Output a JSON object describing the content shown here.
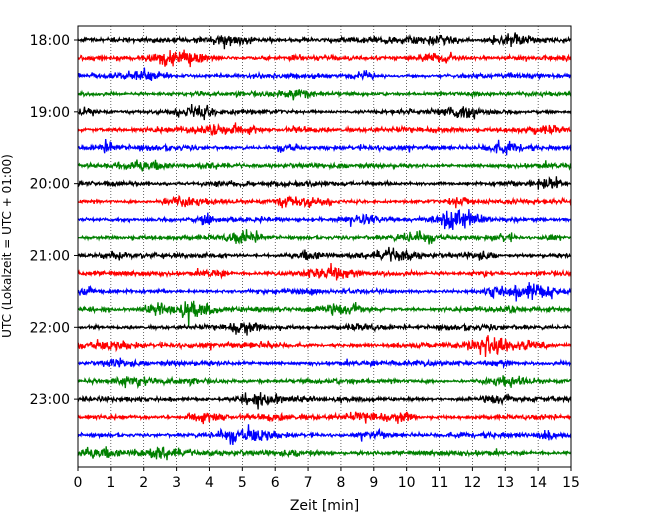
{
  "chart_data": {
    "type": "line",
    "title": "",
    "xlabel": "Zeit  [min]",
    "ylabel": "UTC (Lokalzeit = UTC + 01:00)",
    "xlim": [
      0,
      15
    ],
    "x_ticks": [
      "0",
      "1",
      "2",
      "3",
      "4",
      "5",
      "6",
      "7",
      "8",
      "9",
      "10",
      "11",
      "12",
      "13",
      "14",
      "15"
    ],
    "y_ticks": [
      "18:00",
      "19:00",
      "20:00",
      "21:00",
      "22:00",
      "23:00"
    ],
    "grid": "vertical dotted",
    "trace_colors": [
      "#000000",
      "#ff0000",
      "#0000ff",
      "#008000"
    ],
    "traces_start": "18:00",
    "traces_end": "23:45",
    "trace_interval_min": 15,
    "trace_count": 24
  }
}
